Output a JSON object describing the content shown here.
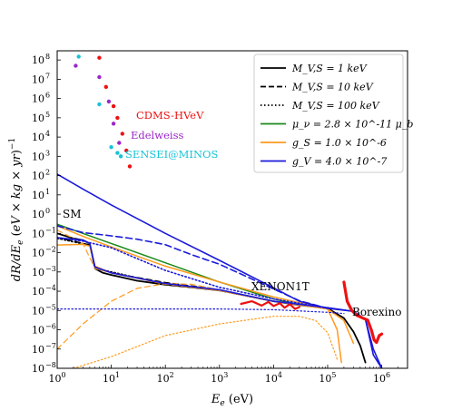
{
  "chart_data": {
    "type": "line",
    "title": "",
    "xlabel": "E_e (eV)",
    "ylabel": "dR/dE_e (eV × kg × yr)^-1",
    "xscale": "log",
    "yscale": "log",
    "xlim": [
      1,
      3000000
    ],
    "ylim": [
      1e-08,
      300000000.0
    ],
    "xticks": [
      "10^0",
      "10^1",
      "10^2",
      "10^3",
      "10^4",
      "10^5",
      "10^6"
    ],
    "yticks": [
      "10^-8",
      "10^-7",
      "10^-6",
      "10^-5",
      "10^-4",
      "10^-3",
      "10^-2",
      "10^-1",
      "10^0",
      "10^1",
      "10^2",
      "10^3",
      "10^4",
      "10^5",
      "10^6",
      "10^7",
      "10^8"
    ],
    "legend_position": "top-right",
    "legend": [
      {
        "label": "M_V,S = 1 keV",
        "color": "#000000",
        "style": "solid"
      },
      {
        "label": "M_V,S = 10 keV",
        "color": "#000000",
        "style": "dashed"
      },
      {
        "label": "M_V,S = 100 keV",
        "color": "#000000",
        "style": "dotted"
      },
      {
        "label": "μ_ν = 2.8 × 10^-11 μ_b",
        "color": "#1a8a1a",
        "style": "solid"
      },
      {
        "label": "g_S = 1.0 × 10^-6",
        "color": "#ff9a1f",
        "style": "solid"
      },
      {
        "label": "g_V = 4.0 × 10^-7",
        "color": "#1a1adb",
        "style": "solid"
      }
    ],
    "annotations": {
      "sm": "SM",
      "xenon": "XENON1T",
      "borexino": "Borexino",
      "cdms": "CDMS-HVeV",
      "edelweiss": "Edelweiss",
      "sensei": "SENSEI@MINOS"
    },
    "colors": {
      "sm": "#000000",
      "green": "#1a8a1a",
      "orange": "#ff9a1f",
      "blue": "#1a1adb",
      "red": "#ee1111",
      "purple": "#9b27c8",
      "cyan": "#17c3d6"
    },
    "series": [
      {
        "kind": "sm",
        "color": "sm",
        "dash": "",
        "w": 1.8,
        "points": [
          [
            1,
            0.1
          ],
          [
            2,
            0.055
          ],
          [
            3,
            0.045
          ],
          [
            4,
            0.03
          ],
          [
            5,
            0.0015
          ],
          [
            7,
            0.0009
          ],
          [
            10,
            0.0007
          ],
          [
            30,
            0.00035
          ],
          [
            100,
            0.00022
          ],
          [
            300,
            0.00016
          ],
          [
            1000,
            0.00011
          ],
          [
            3000,
            6e-05
          ],
          [
            10000,
            3e-05
          ],
          [
            30000,
            1.9e-05
          ],
          [
            100000,
            1.3e-05
          ],
          [
            200000,
            4e-06
          ],
          [
            300000,
            8e-07
          ],
          [
            400000,
            1.5e-07
          ],
          [
            500000,
            2e-08
          ]
        ]
      },
      {
        "kind": "sm10",
        "color": "sm",
        "dash": "6,4",
        "w": 1.5,
        "points": [
          [
            1,
            0.06
          ],
          [
            2,
            0.04
          ],
          [
            4,
            0.025
          ],
          [
            5,
            0.0018
          ],
          [
            10,
            0.0009
          ],
          [
            100,
            0.00028
          ],
          [
            1000,
            0.00012
          ],
          [
            10000,
            3e-05
          ],
          [
            100000,
            1.3e-05
          ]
        ]
      },
      {
        "kind": "sm100",
        "color": "sm",
        "dash": "1.5,2.5",
        "w": 1.5,
        "points": [
          [
            1,
            0.055
          ],
          [
            4,
            0.024
          ],
          [
            5,
            0.0016
          ],
          [
            100,
            0.00023
          ],
          [
            1000,
            0.00011
          ],
          [
            10000,
            3e-05
          ],
          [
            100000,
            1.3e-05
          ]
        ]
      },
      {
        "kind": "mu",
        "color": "green",
        "dash": "",
        "w": 1.5,
        "points": [
          [
            1,
            0.3
          ],
          [
            10,
            0.03
          ],
          [
            100,
            0.003
          ],
          [
            1000,
            0.0003
          ],
          [
            10000,
            4e-05
          ],
          [
            30000,
            2e-05
          ]
        ]
      },
      {
        "kind": "gs1",
        "color": "orange",
        "dash": "",
        "w": 1.5,
        "points": [
          [
            1,
            0.25
          ],
          [
            3,
            0.07
          ],
          [
            10,
            0.02
          ],
          [
            100,
            0.002
          ],
          [
            1000,
            0.0003
          ],
          [
            10000,
            5e-05
          ],
          [
            100000,
            1.2e-05
          ],
          [
            200000,
            3e-06
          ],
          [
            300000,
            2e-07
          ]
        ]
      },
      {
        "kind": "gs2",
        "color": "orange",
        "dash": "",
        "w": 1.5,
        "points": [
          [
            1,
            0.025
          ],
          [
            3,
            0.027
          ],
          [
            4,
            0.022
          ],
          [
            5,
            0.002
          ],
          [
            10,
            0.0009
          ],
          [
            100,
            0.00025
          ],
          [
            1000,
            0.00011
          ],
          [
            10000,
            3e-05
          ],
          [
            100000,
            1.2e-05
          ],
          [
            150000,
            1e-06
          ],
          [
            180000,
            2e-08
          ]
        ]
      },
      {
        "kind": "gs10",
        "color": "orange",
        "dash": "6,4",
        "w": 1.2,
        "points": [
          [
            1,
            0.15
          ],
          [
            3,
            0.03
          ],
          [
            5,
            0.0015
          ],
          [
            10,
            0.0009
          ],
          [
            100,
            0.00023
          ],
          [
            1000,
            0.00011
          ],
          [
            10000,
            3e-05
          ]
        ]
      },
      {
        "kind": "gs10b",
        "color": "orange",
        "dash": "6,4",
        "w": 1.2,
        "points": [
          [
            1,
            1e-07
          ],
          [
            3,
            2e-06
          ],
          [
            10,
            3e-05
          ],
          [
            30,
            0.00014
          ],
          [
            100,
            0.00025
          ],
          [
            300,
            0.00023
          ],
          [
            1000,
            0.00012
          ],
          [
            10000,
            3e-05
          ]
        ]
      },
      {
        "kind": "gs100",
        "color": "orange",
        "dash": "1.5,2.5",
        "w": 1.2,
        "points": [
          [
            2,
            1e-08
          ],
          [
            10,
            4e-08
          ],
          [
            100,
            5e-07
          ],
          [
            1000,
            2e-06
          ],
          [
            10000,
            5e-06
          ],
          [
            30000,
            5e-06
          ],
          [
            60000,
            3e-06
          ],
          [
            100000,
            7e-07
          ],
          [
            150000,
            3e-08
          ]
        ]
      },
      {
        "kind": "gv1",
        "color": "blue",
        "dash": "",
        "w": 1.6,
        "points": [
          [
            1,
            120
          ],
          [
            3,
            20
          ],
          [
            10,
            3
          ],
          [
            100,
            0.1
          ],
          [
            1000,
            0.004
          ],
          [
            10000,
            0.00015
          ],
          [
            30000,
            3e-05
          ],
          [
            100000,
            1.3e-05
          ],
          [
            300000,
            9e-06
          ],
          [
            500000,
            3.5e-06
          ],
          [
            700000,
            1e-07
          ],
          [
            1000000,
            1e-08
          ]
        ]
      },
      {
        "kind": "gv10",
        "color": "blue",
        "dash": "7,4",
        "w": 1.6,
        "points": [
          [
            1,
            0.25
          ],
          [
            3,
            0.11
          ],
          [
            10,
            0.075
          ],
          [
            30,
            0.05
          ],
          [
            100,
            0.026
          ],
          [
            300,
            0.008
          ],
          [
            1000,
            0.0025
          ],
          [
            3000,
            0.00062
          ],
          [
            10000,
            0.00013
          ],
          [
            30000,
            3.2e-05
          ],
          [
            100000,
            1.3e-05
          ]
        ]
      },
      {
        "kind": "gv100",
        "color": "blue",
        "dash": "1.5,2.5",
        "w": 1.6,
        "points": [
          [
            1,
            0.06
          ],
          [
            3,
            0.04
          ],
          [
            10,
            0.018
          ],
          [
            100,
            0.0012
          ],
          [
            1000,
            0.00016
          ],
          [
            10000,
            4e-05
          ],
          [
            100000,
            1.3e-05
          ]
        ]
      },
      {
        "kind": "gv2",
        "color": "blue",
        "dash": "",
        "w": 1.6,
        "points": [
          [
            1,
            0.06
          ],
          [
            3,
            0.045
          ],
          [
            4,
            0.03
          ],
          [
            5,
            0.0018
          ],
          [
            10,
            0.0009
          ],
          [
            100,
            0.00025
          ],
          [
            1000,
            0.00012
          ],
          [
            10000,
            3e-05
          ],
          [
            100000,
            1.4e-05
          ],
          [
            300000,
            9e-06
          ],
          [
            500000,
            3.5e-06
          ],
          [
            700000,
            5e-08
          ],
          [
            1000000,
            1e-08
          ]
        ]
      },
      {
        "kind": "gvflat",
        "color": "blue",
        "dash": "1.5,2.5",
        "w": 1.2,
        "points": [
          [
            1,
            1.2e-05
          ],
          [
            10,
            1.2e-05
          ],
          [
            100,
            1.2e-05
          ],
          [
            1000,
            1.2e-05
          ],
          [
            10000,
            1.1e-05
          ],
          [
            100000,
            8e-06
          ],
          [
            200000,
            7e-06
          ]
        ]
      },
      {
        "kind": "xenon",
        "color": "red",
        "dash": "",
        "w": 2.2,
        "points": [
          [
            2500,
            2.2e-05
          ],
          [
            4000,
            3e-05
          ],
          [
            6000,
            1.8e-05
          ],
          [
            8000,
            2.8e-05
          ],
          [
            10000,
            1.7e-05
          ],
          [
            13000,
            2.4e-05
          ],
          [
            16000,
            1.4e-05
          ],
          [
            20000,
            2.1e-05
          ],
          [
            25000,
            1.2e-05
          ],
          [
            30000,
            1.5e-05
          ]
        ]
      },
      {
        "kind": "borexino",
        "color": "red",
        "dash": "",
        "w": 3.2,
        "points": [
          [
            200000,
            0.0003
          ],
          [
            230000,
            3e-05
          ],
          [
            280000,
            1e-05
          ],
          [
            350000,
            5.5e-06
          ],
          [
            450000,
            4e-06
          ],
          [
            550000,
            3.2e-06
          ],
          [
            650000,
            9e-07
          ],
          [
            720000,
            3e-07
          ],
          [
            800000,
            2.2e-07
          ],
          [
            900000,
            5e-07
          ],
          [
            1000000,
            6e-07
          ]
        ]
      }
    ],
    "dots": [
      {
        "color": "red",
        "points": [
          [
            6,
            130000000.0
          ],
          [
            8,
            4000000.0
          ],
          [
            11,
            400000.0
          ],
          [
            13,
            100000.0
          ],
          [
            16,
            15000.0
          ],
          [
            19,
            2000.0
          ],
          [
            22,
            300
          ]
        ]
      },
      {
        "color": "purple",
        "points": [
          [
            2.2,
            50000000.0
          ],
          [
            6,
            13000000.0
          ],
          [
            9,
            700000.0
          ],
          [
            11,
            50000.0
          ],
          [
            14,
            5000.0
          ]
        ]
      },
      {
        "color": "cyan",
        "points": [
          [
            2.5,
            150000000.0
          ],
          [
            6,
            500000.0
          ],
          [
            10,
            3000.0
          ],
          [
            13,
            1500.0
          ],
          [
            15,
            1000.0
          ]
        ]
      }
    ]
  }
}
